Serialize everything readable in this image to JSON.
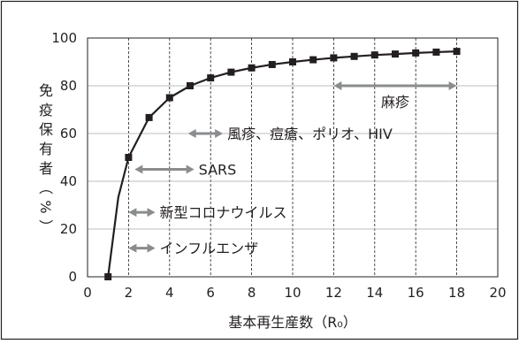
{
  "chart_data": {
    "type": "line",
    "xlabel": "基本再生産数（R₀）",
    "ylabel": [
      "免",
      "疫",
      "保",
      "有",
      "者",
      "（",
      "%",
      "）"
    ],
    "xlim": [
      0,
      20
    ],
    "ylim": [
      0,
      100
    ],
    "xticks": [
      0,
      2,
      4,
      6,
      8,
      10,
      12,
      14,
      16,
      18,
      20
    ],
    "yticks": [
      0,
      20,
      40,
      60,
      80,
      100
    ],
    "vgrid": [
      2,
      4,
      6,
      8,
      10,
      12,
      14,
      16,
      18
    ],
    "hgrid": [
      20,
      40,
      60,
      80,
      100
    ],
    "grid": true,
    "series": [
      {
        "x": [
          1,
          1.5,
          2,
          3,
          4,
          5,
          6,
          7,
          8,
          9,
          10,
          11,
          12,
          13,
          14,
          15,
          16,
          17,
          18
        ],
        "values": [
          0,
          33.3,
          50,
          66.7,
          75,
          80,
          83.3,
          85.7,
          87.5,
          88.9,
          90,
          90.9,
          91.7,
          92.3,
          92.9,
          93.3,
          93.75,
          94.1,
          94.4
        ],
        "markers": [
          1,
          2,
          3,
          4,
          5,
          6,
          7,
          8,
          9,
          10,
          11,
          12,
          13,
          14,
          15,
          16,
          17,
          18
        ]
      }
    ],
    "annotations": [
      {
        "label": "インフルエンザ",
        "x_range": [
          2,
          3.3
        ],
        "y": 12
      },
      {
        "label": "新型コロナウイルス",
        "x_range": [
          2,
          3.3
        ],
        "y": 27
      },
      {
        "label": "SARS",
        "x_range": [
          2.3,
          5.2
        ],
        "y": 45
      },
      {
        "label": "風疹、痘瘡、ポリオ、HIV",
        "x_range": [
          4.9,
          6.6
        ],
        "y": 60
      },
      {
        "label": "麻疹",
        "x_range": [
          12,
          18
        ],
        "y": 80
      }
    ]
  }
}
